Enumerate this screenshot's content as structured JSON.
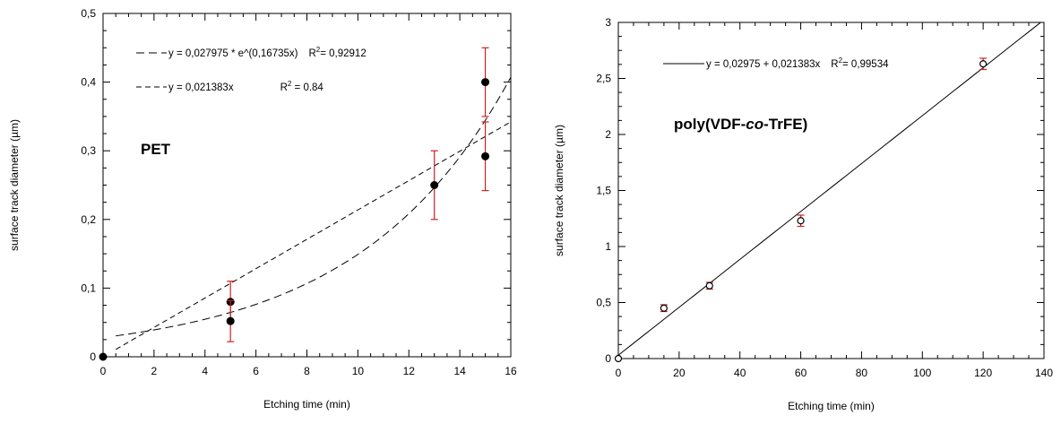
{
  "chart_data": [
    {
      "type": "scatter",
      "annotation": "PET",
      "xlabel": "Etching time (min)",
      "ylabel": "surface track diameter (µm)",
      "xlim": [
        0,
        16
      ],
      "ylim": [
        0,
        0.5
      ],
      "xticks": [
        0,
        2,
        4,
        6,
        8,
        10,
        12,
        14,
        16
      ],
      "xtick_labels": [
        "0",
        "2",
        "4",
        "6",
        "8",
        "10",
        "12",
        "14",
        "16"
      ],
      "yticks": [
        0,
        0.1,
        0.2,
        0.3,
        0.4,
        0.5
      ],
      "ytick_labels": [
        "0",
        "0,1",
        "0,2",
        "0,3",
        "0,4",
        "0,5"
      ],
      "points": [
        {
          "x": 0,
          "y": 0,
          "err": 0
        },
        {
          "x": 5,
          "y": 0.08,
          "err": 0.03
        },
        {
          "x": 5,
          "y": 0.052,
          "err": 0.03
        },
        {
          "x": 13,
          "y": 0.25,
          "err": 0.05
        },
        {
          "x": 15,
          "y": 0.4,
          "err": 0.05
        },
        {
          "x": 15,
          "y": 0.292,
          "err": 0.05
        }
      ],
      "fits": [
        {
          "kind": "exponential",
          "a": 0.027975,
          "b": 0.16735,
          "x_range": [
            0.5,
            16
          ],
          "dash": "long"
        },
        {
          "kind": "linear",
          "slope": 0.021383,
          "intercept": 0,
          "x_range": [
            0.5,
            16
          ],
          "dash": "short"
        }
      ],
      "legend": [
        {
          "eq": "y = 0,027975 * e^(0,16735x)",
          "r2_prefix": "R",
          "r2_sup": "2",
          "r2_value": "= 0,92912"
        },
        {
          "eq": "y = 0,021383x",
          "r2_prefix": "R",
          "r2_sup": "2",
          "r2_value": " = 0.84"
        }
      ],
      "colors": {
        "points": "#000000",
        "errorbars": "#cc2222",
        "fit": "#000000"
      }
    },
    {
      "type": "scatter",
      "annotation_parts": [
        "poly(VDF-",
        "co",
        "-TrFE)"
      ],
      "xlabel": "Etching time (min)",
      "ylabel": "surface track diameter (µm)",
      "xlim": [
        0,
        140
      ],
      "ylim": [
        0,
        3
      ],
      "xticks": [
        0,
        20,
        40,
        60,
        80,
        100,
        120,
        140
      ],
      "xtick_labels": [
        "0",
        "20",
        "40",
        "60",
        "80",
        "100",
        "120",
        "140"
      ],
      "yticks": [
        0,
        0.5,
        1,
        1.5,
        2,
        2.5,
        3
      ],
      "ytick_labels": [
        "0",
        "0,5",
        "1",
        "1,5",
        "2",
        "2,5",
        "3"
      ],
      "points": [
        {
          "x": 0,
          "y": 0,
          "err": 0
        },
        {
          "x": 15,
          "y": 0.45,
          "err": 0.03
        },
        {
          "x": 30,
          "y": 0.65,
          "err": 0.03
        },
        {
          "x": 60,
          "y": 1.23,
          "err": 0.05
        },
        {
          "x": 120,
          "y": 2.63,
          "err": 0.05
        }
      ],
      "fits": [
        {
          "kind": "linear",
          "slope": 0.021383,
          "intercept": 0.02975,
          "x_range": [
            0,
            140
          ],
          "dash": "solid"
        }
      ],
      "legend": [
        {
          "eq": "y = 0,02975 + 0,021383x",
          "r2_prefix": "R",
          "r2_sup": "2",
          "r2_value": "= 0,99534"
        }
      ],
      "colors": {
        "points": "#000000",
        "errorbars": "#cc2222",
        "fit": "#000000"
      }
    }
  ]
}
